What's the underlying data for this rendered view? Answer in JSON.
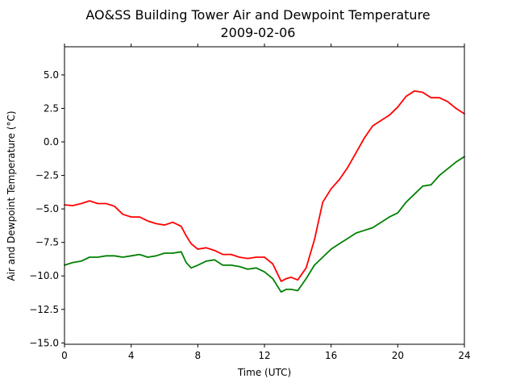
{
  "chart_data": {
    "type": "line",
    "title": "AO&SS Building Tower Air and Dewpoint Temperature",
    "subtitle": "2009-02-06",
    "xlabel": "Time (UTC)",
    "ylabel": "Air and Dewpoint Temperature (°C)",
    "xlim": [
      0,
      24
    ],
    "ylim": [
      -15.1,
      7.1
    ],
    "x_ticks": [
      0,
      4,
      8,
      12,
      16,
      20,
      24
    ],
    "x_tick_labels": [
      "0",
      "4",
      "8",
      "12",
      "16",
      "20",
      "24"
    ],
    "y_ticks": [
      5.0,
      2.5,
      0.0,
      -2.5,
      -5.0,
      -7.5,
      -10.0,
      -12.5,
      -15.0
    ],
    "y_tick_labels": [
      "5.0",
      "2.5",
      "0.0",
      "−2.5",
      "−5.0",
      "−7.5",
      "−10.0",
      "−12.5",
      "−15.0"
    ],
    "grid": false,
    "series": [
      {
        "color": "#ff0000",
        "x": [
          0,
          0.5,
          1.0,
          1.5,
          2.0,
          2.5,
          3.0,
          3.5,
          4.0,
          4.5,
          5.0,
          5.5,
          6.0,
          6.5,
          7.0,
          7.3,
          7.6,
          8.0,
          8.5,
          9.0,
          9.5,
          10.0,
          10.5,
          11.0,
          11.5,
          12.0,
          12.5,
          13.0,
          13.3,
          13.6,
          14.0,
          14.5,
          15.0,
          15.5,
          16.0,
          16.5,
          17.0,
          17.5,
          18.0,
          18.5,
          19.0,
          19.5,
          20.0,
          20.5,
          21.0,
          21.5,
          22.0,
          22.5,
          23.0,
          23.5,
          24.0
        ],
        "values": [
          -4.7,
          -4.75,
          -4.6,
          -4.4,
          -4.6,
          -4.6,
          -4.8,
          -5.4,
          -5.6,
          -5.6,
          -5.9,
          -6.1,
          -6.2,
          -6.0,
          -6.3,
          -7.0,
          -7.6,
          -8.0,
          -7.9,
          -8.1,
          -8.4,
          -8.4,
          -8.6,
          -8.7,
          -8.6,
          -8.6,
          -9.1,
          -10.4,
          -10.2,
          -10.1,
          -10.3,
          -9.4,
          -7.3,
          -4.5,
          -3.5,
          -2.8,
          -1.9,
          -0.8,
          0.3,
          1.2,
          1.6,
          2.0,
          2.6,
          3.4,
          3.8,
          3.7,
          3.3,
          3.3,
          3.0,
          2.5,
          2.1
        ]
      },
      {
        "color": "#008000",
        "x": [
          0,
          0.5,
          1.0,
          1.5,
          2.0,
          2.5,
          3.0,
          3.5,
          4.0,
          4.5,
          5.0,
          5.5,
          6.0,
          6.5,
          7.0,
          7.3,
          7.6,
          8.0,
          8.5,
          9.0,
          9.5,
          10.0,
          10.5,
          11.0,
          11.5,
          12.0,
          12.5,
          13.0,
          13.3,
          13.6,
          14.0,
          14.5,
          15.0,
          15.5,
          16.0,
          16.5,
          17.0,
          17.5,
          18.0,
          18.5,
          19.0,
          19.5,
          20.0,
          20.5,
          21.0,
          21.5,
          22.0,
          22.5,
          23.0,
          23.5,
          24.0
        ],
        "values": [
          -9.2,
          -9.0,
          -8.9,
          -8.6,
          -8.6,
          -8.5,
          -8.5,
          -8.6,
          -8.5,
          -8.4,
          -8.6,
          -8.5,
          -8.3,
          -8.3,
          -8.2,
          -9.0,
          -9.4,
          -9.2,
          -8.9,
          -8.8,
          -9.2,
          -9.2,
          -9.3,
          -9.5,
          -9.4,
          -9.7,
          -10.2,
          -11.2,
          -11.0,
          -11.0,
          -11.1,
          -10.2,
          -9.2,
          -8.6,
          -8.0,
          -7.6,
          -7.2,
          -6.8,
          -6.6,
          -6.4,
          -6.0,
          -5.6,
          -5.3,
          -4.5,
          -3.9,
          -3.3,
          -3.2,
          -2.5,
          -2.0,
          -1.5,
          -1.1
        ]
      }
    ]
  }
}
